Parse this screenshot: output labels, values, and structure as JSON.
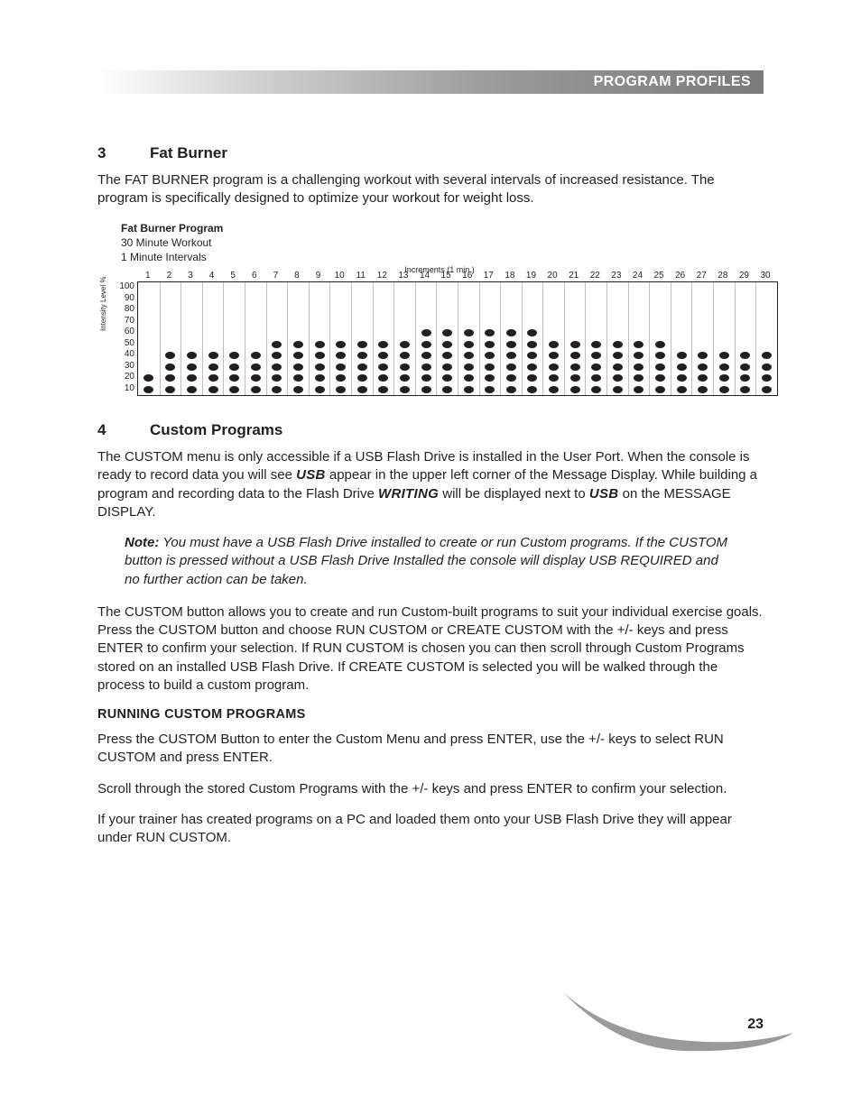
{
  "header": {
    "title": "PROGRAM PROFILES"
  },
  "section3": {
    "num": "3",
    "title": "Fat Burner",
    "para": "The FAT BURNER program is a challenging workout with several intervals of increased resistance.  The program is specifically designed to optimize your workout for weight loss."
  },
  "chart": {
    "title": "Fat Burner Program",
    "sub1": "30 Minute Workout",
    "sub2": "1 Minute Intervals",
    "increments": "Increments (1 min.)",
    "y_label": "Intensity Level %",
    "x_ticks": [
      "1",
      "2",
      "3",
      "4",
      "5",
      "6",
      "7",
      "8",
      "9",
      "10",
      "11",
      "12",
      "13",
      "14",
      "15",
      "16",
      "17",
      "18",
      "19",
      "20",
      "21",
      "22",
      "23",
      "24",
      "25",
      "26",
      "27",
      "28",
      "29",
      "30"
    ],
    "y_ticks": [
      "100",
      "90",
      "80",
      "70",
      "60",
      "50",
      "40",
      "30",
      "20",
      "10"
    ],
    "heights": [
      2,
      4,
      4,
      4,
      4,
      4,
      5,
      5,
      5,
      5,
      5,
      5,
      5,
      6,
      6,
      6,
      6,
      6,
      6,
      5,
      5,
      5,
      5,
      5,
      5,
      4,
      4,
      4,
      4,
      4
    ],
    "n_levels": 10,
    "dot_color": "#231f20",
    "grid_border": "#231f20",
    "grid_line": "#bfbfbf",
    "bg": "#ffffff"
  },
  "section4": {
    "num": "4",
    "title": "Custom Programs",
    "p1a": "The CUSTOM menu is only accessible if a USB Flash Drive is installed in the User Port.  When the console is ready to record data you will see ",
    "usb": "USB",
    "p1b": " appear in the upper left corner of the Message Display.  While building a program and recording data to the Flash Drive ",
    "writing": "WRITING",
    "p1c": " will be displayed next to ",
    "p1d": " on the MESSAGE DISPLAY.",
    "note_label": "Note:",
    "note": " You must have a USB Flash Drive installed to create or run Custom programs.  If the CUSTOM button is pressed without a USB Flash Drive Installed the console will display USB REQUIRED and no further action can be taken.",
    "p2": "The CUSTOM button allows you to create and run Custom-built programs to suit your individual exercise goals.  Press the CUSTOM button and choose RUN CUSTOM or CREATE CUSTOM with the +/- keys and press ENTER to confirm your selection.  If RUN CUSTOM is chosen you can then scroll through Custom Programs stored on an installed USB Flash Drive.  If CREATE CUSTOM is selected you will be walked through the process to build a custom program.",
    "subhead": "RUNNING CUSTOM PROGRAMS",
    "p3": "Press the CUSTOM Button to enter the Custom Menu and press ENTER, use the +/- keys to select RUN CUSTOM and press ENTER.",
    "p4": "Scroll through the stored Custom Programs with the +/- keys and press ENTER to confirm your selection.",
    "p5": "If your trainer has created programs on a PC and loaded them onto your USB Flash Drive they will appear under RUN CUSTOM."
  },
  "footer": {
    "page": "23"
  }
}
